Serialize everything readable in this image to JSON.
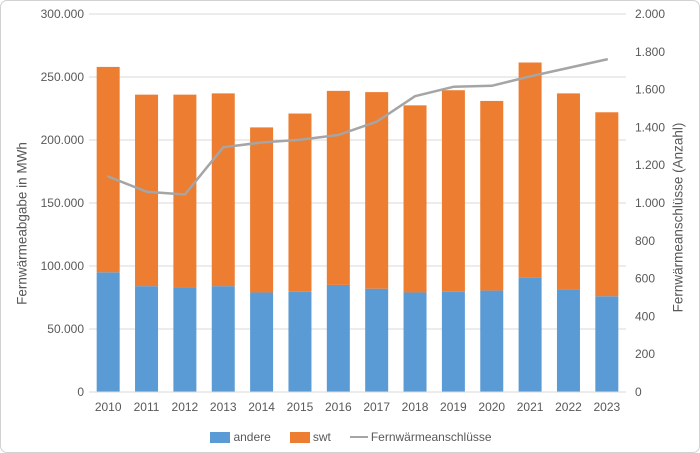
{
  "window": {
    "background": "#ffffff",
    "border_color": "#d2d2d2",
    "text_color": "#595959",
    "gridline_color": "#d9d9d9"
  },
  "chart_data": {
    "type": "bar",
    "subtype": "stacked-bars-with-secondary-axis-line",
    "categories": [
      "2010",
      "2011",
      "2012",
      "2013",
      "2014",
      "2015",
      "2016",
      "2017",
      "2018",
      "2019",
      "2020",
      "2021",
      "2022",
      "2023"
    ],
    "series": [
      {
        "name": "andere",
        "type": "bar",
        "stacked": true,
        "axis": "left",
        "color": "#5B9BD5",
        "values": [
          95000,
          84000,
          83000,
          84000,
          79000,
          79500,
          85000,
          82000,
          79000,
          79500,
          80500,
          91000,
          81000,
          76000
        ]
      },
      {
        "name": "swt",
        "type": "bar",
        "stacked": true,
        "axis": "left",
        "color": "#ED7D31",
        "values": [
          163000,
          152000,
          153000,
          153000,
          131000,
          141500,
          154000,
          156000,
          148500,
          160000,
          150500,
          170500,
          156000,
          146000
        ]
      },
      {
        "name": "Fernwärmeanschlüsse",
        "type": "line",
        "axis": "right",
        "color": "#A5A5A5",
        "values": [
          1140,
          1060,
          1045,
          1295,
          1320,
          1335,
          1360,
          1430,
          1565,
          1615,
          1620,
          1670,
          1715,
          1760
        ]
      }
    ],
    "left_axis": {
      "title": "Fernwärmeabgabe in MWh",
      "min": 0,
      "max": 300000,
      "ticks": [
        {
          "label": "300.000",
          "value": 300000
        },
        {
          "label": "250.000",
          "value": 250000
        },
        {
          "label": "200.000",
          "value": 200000
        },
        {
          "label": "150.000",
          "value": 150000
        },
        {
          "label": "100.000",
          "value": 100000
        },
        {
          "label": "50.000",
          "value": 50000
        },
        {
          "label": "0",
          "value": 0
        }
      ]
    },
    "right_axis": {
      "title": "Fernwärmeanschlüsse (Anzahl)",
      "min": 0,
      "max": 2000,
      "ticks": [
        {
          "label": "2.000",
          "value": 2000
        },
        {
          "label": "1.800",
          "value": 1800
        },
        {
          "label": "1.600",
          "value": 1600
        },
        {
          "label": "1.400",
          "value": 1400
        },
        {
          "label": "1.200",
          "value": 1200
        },
        {
          "label": "1.000",
          "value": 1000
        },
        {
          "label": "800",
          "value": 800
        },
        {
          "label": "600",
          "value": 600
        },
        {
          "label": "400",
          "value": 400
        },
        {
          "label": "200",
          "value": 200
        },
        {
          "label": "0",
          "value": 0
        }
      ]
    },
    "legend": {
      "position": "bottom",
      "entries": [
        "andere",
        "swt",
        "Fernwärmeanschlüsse"
      ]
    },
    "grid": true
  }
}
